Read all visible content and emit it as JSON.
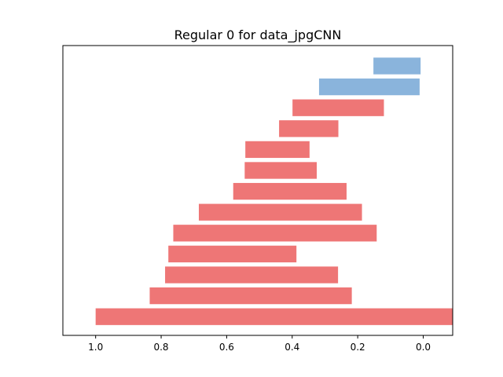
{
  "chart_data": {
    "type": "bar",
    "orientation": "horizontal",
    "title": "Regular 0 for data_jpgCNN",
    "xlabel": "",
    "ylabel": "",
    "xlim": [
      1.1,
      -0.09
    ],
    "x_axis_inverted": true,
    "x_ticks": [
      "1.0",
      "0.8",
      "0.6",
      "0.4",
      "0.2",
      "0.0"
    ],
    "x_tick_values": [
      1.0,
      0.8,
      0.6,
      0.4,
      0.2,
      0.0
    ],
    "y_ticks_visible": false,
    "grid": false,
    "legend": "none",
    "colors": {
      "positive": "#8ab4dc",
      "negative": "#ee7676"
    },
    "bars": [
      {
        "start": 0.152,
        "end": 0.008,
        "color": "positive"
      },
      {
        "start": 0.318,
        "end": 0.011,
        "color": "positive"
      },
      {
        "start": 0.399,
        "end": 0.12,
        "color": "negative"
      },
      {
        "start": 0.44,
        "end": 0.259,
        "color": "negative"
      },
      {
        "start": 0.543,
        "end": 0.347,
        "color": "negative"
      },
      {
        "start": 0.545,
        "end": 0.325,
        "color": "negative"
      },
      {
        "start": 0.58,
        "end": 0.234,
        "color": "negative"
      },
      {
        "start": 0.685,
        "end": 0.187,
        "color": "negative"
      },
      {
        "start": 0.763,
        "end": 0.142,
        "color": "negative"
      },
      {
        "start": 0.778,
        "end": 0.387,
        "color": "negative"
      },
      {
        "start": 0.788,
        "end": 0.26,
        "color": "negative"
      },
      {
        "start": 0.835,
        "end": 0.218,
        "color": "negative"
      },
      {
        "start": 1.0,
        "end": -0.09,
        "color": "negative"
      }
    ]
  }
}
